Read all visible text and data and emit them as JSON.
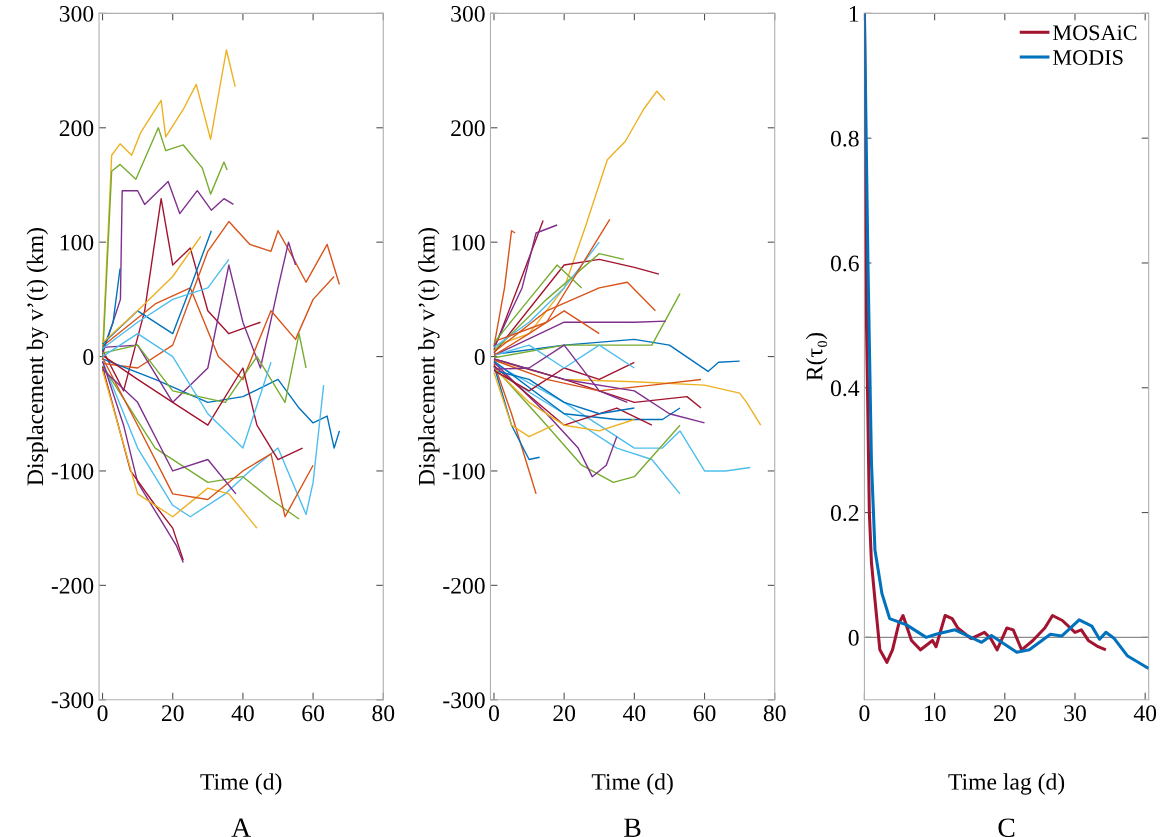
{
  "chart_data": [
    {
      "type": "line",
      "xlabel": "Time (d)",
      "ylabel": "Displacement by v’(t) (km)",
      "annotations": [
        "A"
      ],
      "xlim": [
        -1,
        80
      ],
      "ylim": [
        -300,
        300
      ],
      "xticks": [
        0,
        20,
        40,
        60,
        80
      ],
      "yticks": [
        -300,
        -200,
        -100,
        0,
        100,
        200,
        300
      ],
      "grid": false,
      "legend": false,
      "series": [
        {
          "color": "#edb120",
          "x": [
            0,
            2.6,
            5,
            8.3,
            10.9,
            16.7,
            18,
            23,
            26.7,
            30.8,
            35.3,
            37.8
          ],
          "values": [
            4,
            176,
            186,
            176,
            196,
            224,
            192,
            216,
            238,
            190,
            268,
            236
          ]
        },
        {
          "color": "#77ac30",
          "x": [
            0,
            2.6,
            5,
            9.5,
            15.9,
            18,
            23,
            28.4,
            30.8,
            34.6,
            35.5
          ],
          "values": [
            -3,
            162,
            168,
            155,
            200,
            180,
            185,
            165,
            142,
            170,
            163
          ]
        },
        {
          "color": "#7e2f8e",
          "x": [
            0,
            5.1,
            5.6,
            10,
            12,
            18.7,
            22,
            27,
            31,
            34.6,
            37.3
          ],
          "values": [
            2,
            50,
            145,
            145,
            133,
            153,
            125,
            145,
            128,
            138,
            133
          ]
        },
        {
          "color": "#a2142f",
          "x": [
            0,
            6,
            12,
            16.7,
            20,
            25,
            30,
            36,
            45
          ],
          "values": [
            6,
            -30,
            40,
            138,
            80,
            95,
            40,
            20,
            30
          ]
        },
        {
          "color": "#d95319",
          "x": [
            0,
            10,
            20,
            30,
            36,
            42,
            48,
            50,
            54,
            58,
            64,
            67.5
          ],
          "values": [
            -6,
            -10,
            10,
            92,
            118,
            98,
            92,
            110,
            88,
            65,
            98,
            63
          ]
        },
        {
          "color": "#0072bd",
          "x": [
            0,
            15,
            30,
            40,
            50,
            56,
            60,
            64,
            66,
            67.5
          ],
          "values": [
            -2,
            -20,
            -40,
            -35,
            -20,
            -45,
            -58,
            -52,
            -80,
            -65
          ]
        },
        {
          "color": "#4dbeee",
          "x": [
            0,
            10,
            20,
            25,
            35,
            42,
            50,
            58,
            60,
            63
          ],
          "values": [
            -4,
            -80,
            -130,
            -140,
            -120,
            -100,
            -80,
            -138,
            -110,
            -25
          ]
        },
        {
          "color": "#77ac30",
          "x": [
            0,
            15,
            30,
            40,
            48,
            56
          ],
          "values": [
            -8,
            -80,
            -110,
            -105,
            -125,
            -142
          ]
        },
        {
          "color": "#7e2f8e",
          "x": [
            0,
            6,
            10,
            16,
            21,
            23
          ],
          "values": [
            -4,
            -60,
            -110,
            -140,
            -165,
            -180
          ]
        },
        {
          "color": "#a2142f",
          "x": [
            0,
            8,
            15,
            20,
            23
          ],
          "values": [
            -9,
            -100,
            -130,
            -150,
            -178
          ]
        },
        {
          "color": "#edb120",
          "x": [
            0,
            10,
            20,
            30,
            36,
            44
          ],
          "values": [
            -12,
            -120,
            -140,
            -115,
            -120,
            -150
          ]
        },
        {
          "color": "#d95319",
          "x": [
            0,
            10,
            20,
            30,
            40,
            48,
            52,
            60
          ],
          "values": [
            -1,
            -60,
            -120,
            -125,
            -100,
            -85,
            -140,
            -95
          ]
        },
        {
          "color": "#7e2f8e",
          "x": [
            0,
            10,
            20,
            30,
            36,
            40,
            45,
            50,
            53,
            55
          ],
          "values": [
            8,
            10,
            -40,
            -10,
            80,
            30,
            -10,
            60,
            100,
            80
          ]
        },
        {
          "color": "#d95319",
          "x": [
            0,
            15,
            25,
            33,
            40,
            48,
            55,
            60,
            66
          ],
          "values": [
            9,
            46,
            60,
            0,
            -20,
            40,
            15,
            50,
            70
          ]
        },
        {
          "color": "#77ac30",
          "x": [
            0,
            10,
            20,
            35,
            44,
            52,
            56,
            58
          ],
          "values": [
            3,
            10,
            -30,
            -40,
            0,
            -40,
            20,
            -10
          ]
        },
        {
          "color": "#0072bd",
          "x": [
            0,
            3,
            5
          ],
          "values": [
            5,
            30,
            77
          ]
        },
        {
          "color": "#0072bd",
          "x": [
            0,
            10,
            20,
            25,
            31
          ],
          "values": [
            11,
            40,
            20,
            60,
            110
          ]
        },
        {
          "color": "#4dbeee",
          "x": [
            0,
            10,
            20,
            30,
            36
          ],
          "values": [
            7,
            30,
            50,
            60,
            85
          ]
        },
        {
          "color": "#a2142f",
          "x": [
            0,
            10,
            20,
            30,
            40,
            44,
            50,
            57
          ],
          "values": [
            1,
            -20,
            -40,
            -60,
            -10,
            -60,
            -90,
            -80
          ]
        },
        {
          "color": "#4dbeee",
          "x": [
            0,
            10,
            20,
            30,
            40,
            48
          ],
          "values": [
            0,
            20,
            0,
            -50,
            -80,
            -5
          ]
        },
        {
          "color": "#edb120",
          "x": [
            0,
            10,
            20,
            28
          ],
          "values": [
            12,
            40,
            70,
            105
          ]
        },
        {
          "color": "#7e2f8e",
          "x": [
            0,
            10,
            20,
            30,
            38
          ],
          "values": [
            -11,
            -40,
            -100,
            -90,
            -120
          ]
        }
      ]
    },
    {
      "type": "line",
      "xlabel": "Time (d)",
      "ylabel": "Displacement by v’(t) (km)",
      "annotations": [
        "B"
      ],
      "xlim": [
        -1,
        80
      ],
      "ylim": [
        -300,
        300
      ],
      "xticks": [
        0,
        20,
        40,
        60,
        80
      ],
      "yticks": [
        -300,
        -200,
        -100,
        0,
        100,
        200,
        300
      ],
      "grid": false,
      "legend": false,
      "series": [
        {
          "color": "#edb120",
          "x": [
            0,
            10,
            20,
            26,
            32.3,
            37.4,
            42.6,
            46.4,
            48.7
          ],
          "values": [
            9,
            20,
            60,
            113,
            172,
            188,
            216,
            232,
            224
          ]
        },
        {
          "color": "#0072bd",
          "x": [
            0,
            20,
            40,
            50,
            61,
            64,
            70
          ],
          "values": [
            2,
            10,
            15,
            10,
            -13,
            -5,
            -4
          ]
        },
        {
          "color": "#edb120",
          "x": [
            0,
            20,
            40,
            60,
            70,
            72,
            76
          ],
          "values": [
            -3,
            -20,
            -22,
            -25,
            -32,
            -40,
            -60
          ]
        },
        {
          "color": "#4dbeee",
          "x": [
            0,
            20,
            40,
            48,
            53,
            60,
            66,
            73
          ],
          "values": [
            -6,
            -40,
            -80,
            -80,
            -65,
            -100,
            -100,
            -97
          ]
        },
        {
          "color": "#4dbeee",
          "x": [
            0,
            20,
            35,
            45,
            53
          ],
          "values": [
            -12,
            -50,
            -80,
            -90,
            -120
          ]
        },
        {
          "color": "#77ac30",
          "x": [
            0,
            15,
            25,
            34,
            40,
            53
          ],
          "values": [
            -9,
            -60,
            -95,
            -110,
            -105,
            -60
          ]
        },
        {
          "color": "#7e2f8e",
          "x": [
            0,
            15,
            24,
            28,
            32,
            35
          ],
          "values": [
            -5,
            -50,
            -80,
            -105,
            -95,
            -70
          ]
        },
        {
          "color": "#d95319",
          "x": [
            0,
            5,
            10,
            12
          ],
          "values": [
            -6,
            -50,
            -100,
            -120
          ]
        },
        {
          "color": "#0072bd",
          "x": [
            0,
            5,
            10,
            13
          ],
          "values": [
            -8,
            -60,
            -90,
            -88
          ]
        },
        {
          "color": "#a2142f",
          "x": [
            0,
            8,
            14
          ],
          "values": [
            6,
            70,
            119
          ]
        },
        {
          "color": "#d95319",
          "x": [
            0,
            3,
            5,
            6
          ],
          "values": [
            9,
            60,
            110,
            108
          ]
        },
        {
          "color": "#7e2f8e",
          "x": [
            0,
            8,
            12,
            18
          ],
          "values": [
            8,
            60,
            108,
            115
          ]
        },
        {
          "color": "#a2142f",
          "x": [
            0,
            20,
            30,
            40,
            47
          ],
          "values": [
            3,
            80,
            85,
            78,
            72
          ]
        },
        {
          "color": "#77ac30",
          "x": [
            0,
            15,
            30,
            37
          ],
          "values": [
            5,
            50,
            90,
            85
          ]
        },
        {
          "color": "#77ac30",
          "x": [
            0,
            20,
            45,
            53
          ],
          "values": [
            -1,
            10,
            10,
            55
          ]
        },
        {
          "color": "#d95319",
          "x": [
            0,
            15,
            30,
            38,
            46
          ],
          "values": [
            4,
            40,
            60,
            65,
            40
          ]
        },
        {
          "color": "#7e2f8e",
          "x": [
            0,
            20,
            40,
            49
          ],
          "values": [
            1,
            30,
            30,
            31
          ]
        },
        {
          "color": "#a2142f",
          "x": [
            0,
            20,
            40,
            55,
            59
          ],
          "values": [
            -2,
            -20,
            -40,
            -35,
            -45
          ]
        },
        {
          "color": "#d95319",
          "x": [
            0,
            15,
            30,
            45,
            59
          ],
          "values": [
            -3,
            -20,
            -30,
            -25,
            -20
          ]
        },
        {
          "color": "#0072bd",
          "x": [
            0,
            20,
            35,
            48,
            53
          ],
          "values": [
            -4,
            -50,
            -55,
            -55,
            -45
          ]
        },
        {
          "color": "#a2142f",
          "x": [
            0,
            20,
            35,
            45
          ],
          "values": [
            -8,
            -60,
            -45,
            -60
          ]
        },
        {
          "color": "#7e2f8e",
          "x": [
            0,
            20,
            40,
            50,
            60
          ],
          "values": [
            -2,
            -20,
            -30,
            -50,
            -58
          ]
        },
        {
          "color": "#4dbeee",
          "x": [
            0,
            10,
            20,
            30
          ],
          "values": [
            8,
            30,
            60,
            100
          ]
        },
        {
          "color": "#d95319",
          "x": [
            0,
            15,
            25,
            33
          ],
          "values": [
            13,
            30,
            80,
            120
          ]
        },
        {
          "color": "#0072bd",
          "x": [
            0,
            10,
            20,
            30,
            40
          ],
          "values": [
            -12,
            -20,
            -40,
            -50,
            -45
          ]
        },
        {
          "color": "#edb120",
          "x": [
            0,
            10,
            20,
            30,
            40
          ],
          "values": [
            -10,
            -40,
            -60,
            -65,
            -55
          ]
        },
        {
          "color": "#a2142f",
          "x": [
            0,
            10,
            20,
            30,
            40
          ],
          "values": [
            -12,
            -30,
            -10,
            -20,
            -5
          ]
        },
        {
          "color": "#4dbeee",
          "x": [
            0,
            10,
            20,
            30,
            40
          ],
          "values": [
            1,
            10,
            -10,
            10,
            -10
          ]
        },
        {
          "color": "#d95319",
          "x": [
            0,
            10,
            20,
            30
          ],
          "values": [
            1,
            20,
            40,
            20
          ]
        },
        {
          "color": "#7e2f8e",
          "x": [
            0,
            10,
            20,
            30,
            38
          ],
          "values": [
            -11,
            -10,
            10,
            -30,
            -40
          ]
        },
        {
          "color": "#77ac30",
          "x": [
            0,
            10,
            18,
            25
          ],
          "values": [
            12,
            50,
            80,
            60
          ]
        },
        {
          "color": "#edb120",
          "x": [
            0,
            5,
            10,
            17
          ],
          "values": [
            -14,
            -60,
            -70,
            -60
          ]
        }
      ]
    },
    {
      "type": "line",
      "xlabel": "Time lag (d)",
      "ylabel": "R(τ₀)",
      "annotations": [
        "C"
      ],
      "xlim": [
        0,
        40.5
      ],
      "ylim": [
        -0.1,
        1
      ],
      "xticks": [
        0,
        10,
        20,
        30,
        40
      ],
      "yticks": [
        0,
        0.2,
        0.4,
        0.6,
        0.8,
        1
      ],
      "grid": false,
      "legend": "top right",
      "ref_lines": [
        {
          "axis": "y",
          "value": 0,
          "color": "#8c8c8c"
        }
      ],
      "series": [
        {
          "name": "MOSAiC",
          "color": "#a2142f",
          "x": [
            0,
            0.3,
            0.7,
            1,
            1.5,
            2.2,
            3.2,
            4,
            4.9,
            5.5,
            6.7,
            8,
            9.7,
            10.2,
            11.5,
            12.5,
            13.3,
            15.2,
            17.1,
            18,
            18.9,
            20.3,
            21.2,
            22.4,
            24,
            25.7,
            26.8,
            28.2,
            30,
            30.9,
            31.9,
            33.3,
            34.4
          ],
          "values": [
            1,
            0.5,
            0.2,
            0.12,
            0.06,
            -0.02,
            -0.04,
            -0.02,
            0.022,
            0.035,
            -0.005,
            -0.02,
            -0.005,
            -0.015,
            0.035,
            0.03,
            0.015,
            -0.002,
            0.008,
            -0.002,
            -0.02,
            0.015,
            0.012,
            -0.02,
            -0.005,
            0.015,
            0.035,
            0.027,
            0.008,
            0.012,
            -0.005,
            -0.015,
            -0.02
          ]
        },
        {
          "name": "MODIS",
          "color": "#0072bd",
          "x": [
            0,
            0.5,
            1,
            1.5,
            2.5,
            3.6,
            6,
            8.8,
            10.2,
            12.9,
            16.7,
            18.1,
            21.7,
            23.5,
            26.5,
            28.1,
            30.6,
            32.4,
            33.5,
            34.4,
            35.6,
            37.5,
            40.5
          ],
          "values": [
            1,
            0.6,
            0.28,
            0.14,
            0.07,
            0.03,
            0.02,
            0,
            0.005,
            0.012,
            -0.008,
            0.003,
            -0.024,
            -0.02,
            0.005,
            0.002,
            0.028,
            0.018,
            -0.003,
            0.008,
            -0.002,
            -0.03,
            -0.05
          ]
        }
      ]
    }
  ]
}
